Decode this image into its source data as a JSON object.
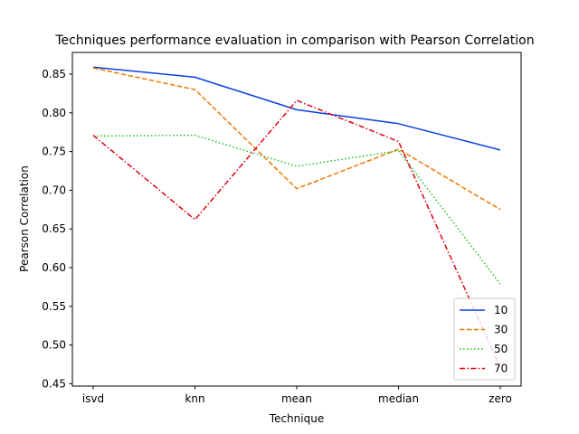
{
  "chart_data": {
    "type": "line",
    "title": "Techniques performance evaluation in comparison with Pearson Correlation",
    "xlabel": "Technique",
    "ylabel": "Pearson Correlation",
    "categories": [
      "isvd",
      "knn",
      "mean",
      "median",
      "zero"
    ],
    "ylim": [
      0.447,
      0.878
    ],
    "yticks": [
      "0.45",
      "0.50",
      "0.55",
      "0.60",
      "0.65",
      "0.70",
      "0.75",
      "0.80",
      "0.85"
    ],
    "grid": false,
    "legend_position": "lower-right",
    "series": [
      {
        "name": "10",
        "color": "#0b40e0",
        "dash": "solid",
        "values": [
          0.859,
          0.846,
          0.804,
          0.786,
          0.752
        ]
      },
      {
        "name": "30",
        "color": "#f07800",
        "dash": "dashed",
        "values": [
          0.858,
          0.83,
          0.702,
          0.753,
          0.675
        ]
      },
      {
        "name": "50",
        "color": "#1dc41d",
        "dash": "dotted",
        "values": [
          0.77,
          0.771,
          0.731,
          0.751,
          0.579
        ]
      },
      {
        "name": "70",
        "color": "#e00010",
        "dash": "dashdot",
        "values": [
          0.771,
          0.662,
          0.816,
          0.763,
          0.471
        ]
      }
    ]
  }
}
